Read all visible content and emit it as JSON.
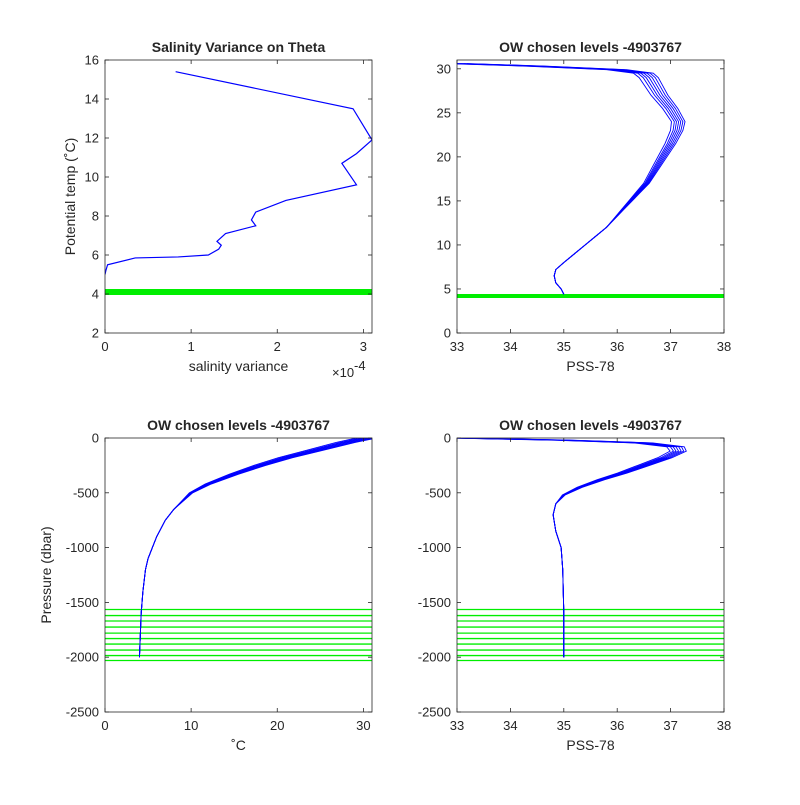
{
  "chart_data": [
    {
      "type": "line",
      "title": "Salinity Variance on Theta",
      "xlabel": "salinity variance",
      "ylabel": "Potential temp (˚C)",
      "exponent_label": "×10",
      "exponent": "-4",
      "xlim": [
        0,
        3.1
      ],
      "ylim": [
        2,
        16
      ],
      "xticks": [
        "0",
        "1",
        "2",
        "3"
      ],
      "yticks": [
        "2",
        "4",
        "6",
        "8",
        "10",
        "12",
        "14",
        "16"
      ],
      "colors": {
        "profile": "#0000ff",
        "chosen": "#00ee00"
      },
      "series": [
        {
          "points": [
            [
              0.82,
              15.4
            ],
            [
              2.88,
              13.5
            ],
            [
              3.1,
              11.9
            ],
            [
              2.92,
              11.2
            ],
            [
              2.75,
              10.7
            ],
            [
              2.92,
              9.6
            ],
            [
              2.1,
              8.8
            ],
            [
              1.75,
              8.2
            ],
            [
              1.7,
              7.8
            ],
            [
              1.75,
              7.5
            ],
            [
              1.4,
              7.1
            ],
            [
              1.3,
              6.7
            ],
            [
              1.35,
              6.5
            ],
            [
              1.32,
              6.3
            ],
            [
              1.2,
              6.0
            ],
            [
              0.85,
              5.9
            ],
            [
              0.35,
              5.85
            ],
            [
              0.03,
              5.5
            ],
            [
              0.01,
              5.2
            ],
            [
              0.0,
              5.0
            ]
          ]
        }
      ],
      "chosen_levels": [
        4.1
      ]
    },
    {
      "type": "line",
      "title": "OW chosen levels -4903767",
      "xlabel": "PSS-78",
      "ylabel": "",
      "xlim": [
        33,
        38
      ],
      "ylim": [
        0,
        31
      ],
      "xticks": [
        "33",
        "34",
        "35",
        "36",
        "37",
        "38"
      ],
      "yticks": [
        "0",
        "5",
        "10",
        "15",
        "20",
        "25",
        "30"
      ],
      "series": [
        {
          "points": [
            [
              35.0,
              4.4
            ],
            [
              34.95,
              5.0
            ],
            [
              34.85,
              5.7
            ],
            [
              34.82,
              6.5
            ],
            [
              34.85,
              7.2
            ],
            [
              35.0,
              8.0
            ],
            [
              35.2,
              9.0
            ],
            [
              35.4,
              10.0
            ],
            [
              35.6,
              11.0
            ],
            [
              35.8,
              12.0
            ],
            [
              35.95,
              13.0
            ],
            [
              36.1,
              14.0
            ],
            [
              36.25,
              15.0
            ],
            [
              36.4,
              16.0
            ],
            [
              36.55,
              17.0
            ],
            [
              36.7,
              18.5
            ],
            [
              36.85,
              20.0
            ],
            [
              37.0,
              21.5
            ],
            [
              37.12,
              23.0
            ],
            [
              37.15,
              24.0
            ],
            [
              37.0,
              25.5
            ],
            [
              36.8,
              27.0
            ],
            [
              36.7,
              28.0
            ],
            [
              36.6,
              29.0
            ],
            [
              36.5,
              29.5
            ],
            [
              36.0,
              29.9
            ],
            [
              34.5,
              30.3
            ],
            [
              33.0,
              30.6
            ]
          ]
        }
      ],
      "chosen_levels": [
        4.2
      ]
    },
    {
      "type": "line",
      "title": "OW chosen levels -4903767",
      "xlabel": "˚C",
      "ylabel": "Pressure (dbar)",
      "xlim": [
        0,
        31
      ],
      "ylim": [
        -2500,
        0
      ],
      "xticks": [
        "0",
        "10",
        "20",
        "30"
      ],
      "yticks": [
        "0",
        "-500",
        "-1000",
        "-1500",
        "-2000",
        "-2500"
      ],
      "series": [
        {
          "points": [
            [
              4.0,
              -2000
            ],
            [
              4.1,
              -1800
            ],
            [
              4.2,
              -1600
            ],
            [
              4.4,
              -1400
            ],
            [
              4.7,
              -1200
            ],
            [
              5.0,
              -1100
            ],
            [
              5.5,
              -1000
            ],
            [
              6.0,
              -900
            ],
            [
              7.0,
              -750
            ],
            [
              8.0,
              -650
            ],
            [
              10.0,
              -500
            ],
            [
              12.0,
              -420
            ],
            [
              15.0,
              -330
            ],
            [
              18.0,
              -250
            ],
            [
              21.0,
              -180
            ],
            [
              24.0,
              -120
            ],
            [
              26.0,
              -80
            ],
            [
              28.0,
              -40
            ],
            [
              29.5,
              -15
            ],
            [
              30.5,
              0
            ]
          ]
        }
      ],
      "chosen_levels": [
        -1565,
        -1620,
        -1670,
        -1725,
        -1780,
        -1830,
        -1880,
        -1935,
        -1985,
        -2030
      ]
    },
    {
      "type": "line",
      "title": "OW chosen levels -4903767",
      "xlabel": "PSS-78",
      "ylabel": "",
      "xlim": [
        33,
        38
      ],
      "ylim": [
        -2500,
        0
      ],
      "xticks": [
        "33",
        "34",
        "35",
        "36",
        "37",
        "38"
      ],
      "yticks": [
        "0",
        "-500",
        "-1000",
        "-1500",
        "-2000",
        "-2500"
      ],
      "series": [
        {
          "points": [
            [
              35.0,
              -2000
            ],
            [
              35.0,
              -1600
            ],
            [
              34.98,
              -1200
            ],
            [
              34.95,
              -1000
            ],
            [
              34.85,
              -850
            ],
            [
              34.8,
              -700
            ],
            [
              34.85,
              -600
            ],
            [
              35.0,
              -520
            ],
            [
              35.3,
              -450
            ],
            [
              35.7,
              -380
            ],
            [
              36.1,
              -320
            ],
            [
              36.5,
              -250
            ],
            [
              36.9,
              -180
            ],
            [
              37.15,
              -120
            ],
            [
              37.1,
              -80
            ],
            [
              36.5,
              -45
            ],
            [
              35.0,
              -20
            ],
            [
              33.0,
              0
            ]
          ]
        }
      ],
      "chosen_levels": [
        -1565,
        -1620,
        -1670,
        -1725,
        -1780,
        -1830,
        -1880,
        -1935,
        -1985,
        -2030
      ]
    }
  ]
}
